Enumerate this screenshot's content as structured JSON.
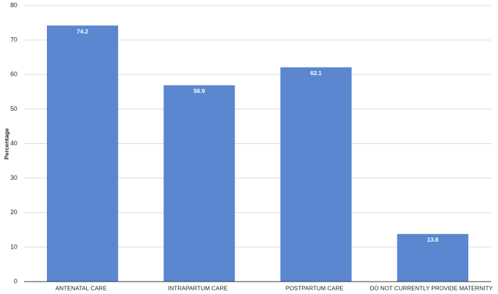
{
  "chart_data": {
    "type": "bar",
    "y_label": "Percentage",
    "categories": [
      "ANTENATAL CARE",
      "INTRAPARTUM CARE",
      "POSTPARTUM CARE",
      "DO NOT CURRENTLY PROVIDE MATERNITY"
    ],
    "values": [
      74.2,
      56.9,
      62.1,
      13.8
    ],
    "color": "#5b87d0",
    "ylim": [
      0,
      80
    ],
    "yticks": [
      0,
      10,
      20,
      30,
      40,
      50,
      60,
      70,
      80
    ],
    "grid": true,
    "data_labels": true
  }
}
